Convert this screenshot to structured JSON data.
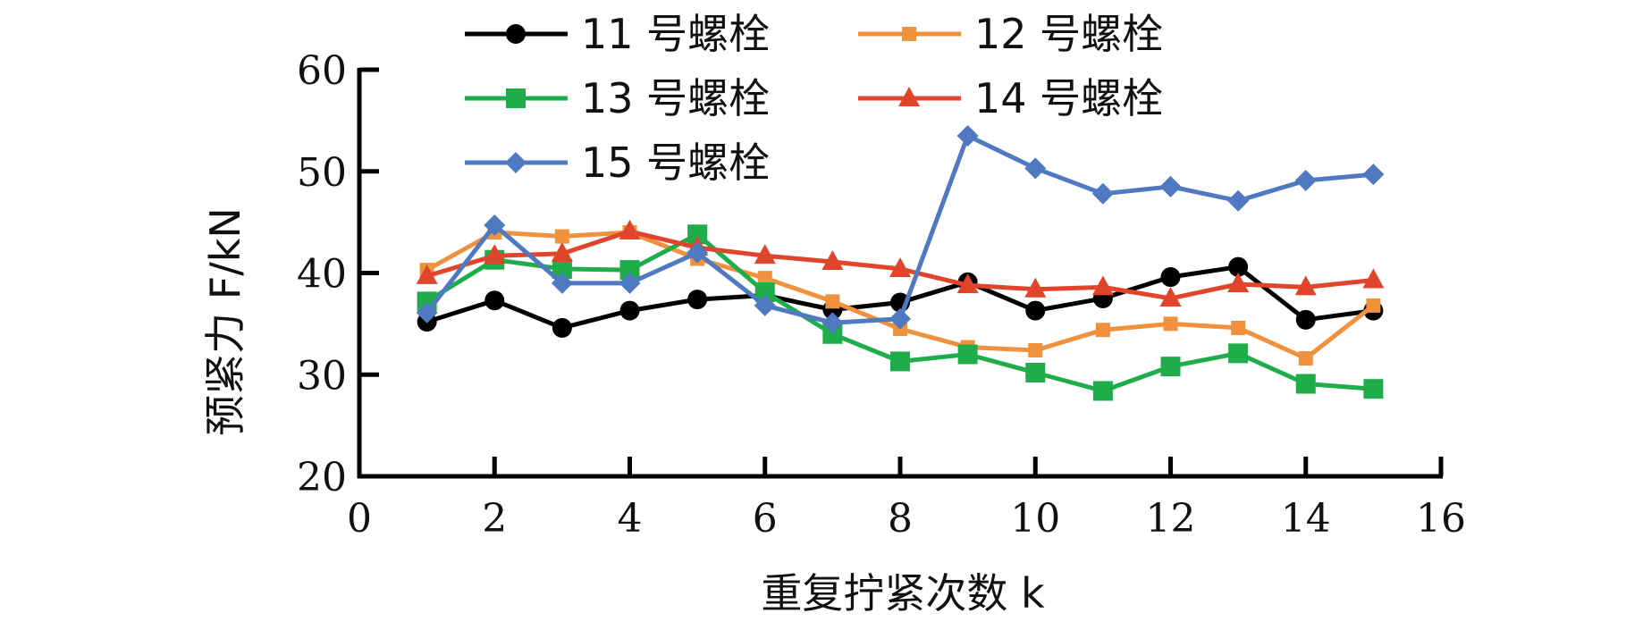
{
  "chart_data": {
    "type": "line",
    "xlabel": "重复拧紧次数 k",
    "ylabel": "预紧力 F/kN",
    "xlim": [
      0,
      16
    ],
    "ylim": [
      20,
      60
    ],
    "xticks": [
      0,
      2,
      4,
      6,
      8,
      10,
      12,
      14,
      16
    ],
    "yticks": [
      20,
      30,
      40,
      50,
      60
    ],
    "grid": false,
    "legend_position": "top",
    "x": [
      1,
      2,
      3,
      4,
      5,
      6,
      7,
      8,
      9,
      10,
      11,
      12,
      13,
      14,
      15
    ],
    "series": [
      {
        "name": "11 号螺栓",
        "color": "#000000",
        "marker": "circle",
        "values": [
          35.2,
          37.3,
          34.6,
          36.3,
          37.4,
          37.8,
          36.4,
          37.1,
          39.1,
          36.3,
          37.5,
          39.6,
          40.6,
          35.4,
          36.3
        ]
      },
      {
        "name": "12 号螺栓",
        "color": "#F0913E",
        "marker": "square-small",
        "values": [
          40.3,
          44.0,
          43.6,
          44.0,
          41.4,
          39.5,
          37.2,
          34.5,
          32.7,
          32.4,
          34.4,
          35.0,
          34.6,
          31.6,
          36.8
        ]
      },
      {
        "name": "13 号螺栓",
        "color": "#1FAD4B",
        "marker": "square",
        "values": [
          37.2,
          41.3,
          40.4,
          40.3,
          43.8,
          38.1,
          34.0,
          31.3,
          32.0,
          30.2,
          28.4,
          30.8,
          32.1,
          29.1,
          28.6
        ]
      },
      {
        "name": "14 号螺栓",
        "color": "#E0452C",
        "marker": "triangle",
        "values": [
          39.7,
          41.7,
          41.9,
          44.1,
          42.5,
          41.7,
          41.1,
          40.4,
          38.8,
          38.4,
          38.6,
          37.5,
          38.9,
          38.6,
          39.3
        ]
      },
      {
        "name": "15 号螺栓",
        "color": "#4F79C0",
        "marker": "diamond",
        "values": [
          36.1,
          44.7,
          39.0,
          39.0,
          42.0,
          36.8,
          35.1,
          35.5,
          53.5,
          50.3,
          47.8,
          48.5,
          47.1,
          49.1,
          49.7
        ]
      }
    ]
  }
}
